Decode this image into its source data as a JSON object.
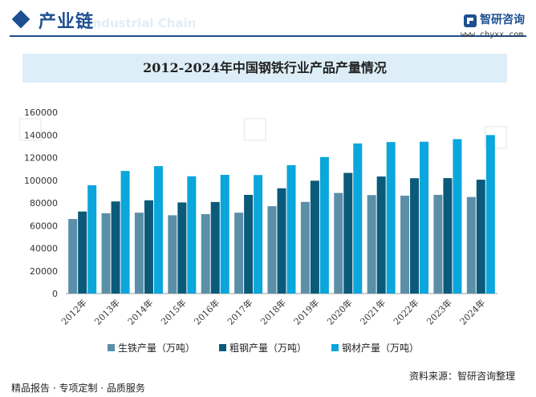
{
  "header": {
    "section_title": "产业链",
    "section_watermark": "Industrial Chain",
    "brand_name": "智研咨询",
    "brand_url": "www.chyxx.com"
  },
  "footer": {
    "left_text": "精品报告 · 专项定制 · 品质服务",
    "source_text": "资料来源：智研咨询整理"
  },
  "colors": {
    "brand": "#1d4f91",
    "pig_iron": "#5b8fa8",
    "crude_steel": "#0b5a7a",
    "steel_products": "#0aa6dc"
  },
  "chart_data": {
    "type": "bar",
    "title": "2012-2024年中国钢铁行业产品产量情况",
    "xlabel": "",
    "ylabel": "",
    "categories": [
      "2012年",
      "2013年",
      "2014年",
      "2015年",
      "2016年",
      "2017年",
      "2018年",
      "2019年",
      "2020年",
      "2021年",
      "2022年",
      "2023年",
      "2024年"
    ],
    "series": [
      {
        "name": "生铁产量（万吨）",
        "values": [
          65800,
          70900,
          71400,
          69100,
          70100,
          71400,
          77100,
          80900,
          88800,
          86900,
          86400,
          87100,
          85200
        ]
      },
      {
        "name": "粗钢产量（万吨）",
        "values": [
          72400,
          81300,
          82300,
          80400,
          80800,
          87100,
          92900,
          99600,
          106500,
          103300,
          101800,
          101900,
          100500
        ]
      },
      {
        "name": "钢材产量（万吨）",
        "values": [
          95600,
          108200,
          112500,
          103500,
          104800,
          104600,
          113300,
          120500,
          132500,
          133700,
          134000,
          136300,
          139900
        ]
      }
    ],
    "ylim": [
      0,
      160000
    ],
    "yticks": [
      0,
      20000,
      40000,
      60000,
      80000,
      100000,
      120000,
      140000,
      160000
    ],
    "grid": false,
    "legend_position": "bottom"
  }
}
